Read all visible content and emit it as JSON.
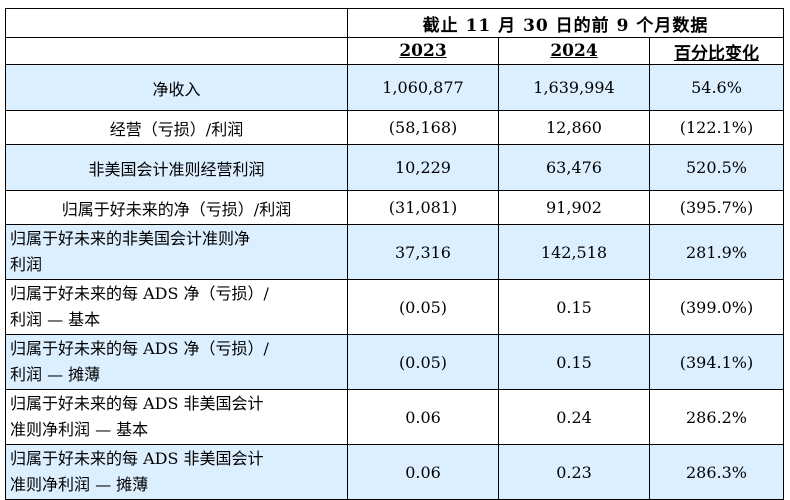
{
  "header": {
    "period": "截止 11 月 30 日的前 9 个月数据",
    "col_2023": "2023",
    "col_2024": "2024",
    "col_change": "百分比变化"
  },
  "colors": {
    "shaded_row": "#dcefff"
  },
  "rows": [
    {
      "label": "净收入",
      "v2023": "1,060,877",
      "v2024": "1,639,994",
      "change": "54.6%"
    },
    {
      "label": "经营（亏损）/利润",
      "v2023": "(58,168)",
      "v2024": "12,860",
      "change": "(122.1%)"
    },
    {
      "label": "非美国会计准则经营利润",
      "v2023": "10,229",
      "v2024": "63,476",
      "change": "520.5%"
    },
    {
      "label": "归属于好未来的净（亏损）/利润",
      "v2023": "(31,081)",
      "v2024": "91,902",
      "change": "(395.7%)"
    },
    {
      "label_line1": "归属于好未来的非美国会计准则净",
      "label_line2": "利润",
      "v2023": "37,316",
      "v2024": "142,518",
      "change": "281.9%"
    },
    {
      "label_line1": "归属于好未来的每 ADS 净（亏损）/",
      "label_line2": "利润 — 基本",
      "v2023": "(0.05)",
      "v2024": "0.15",
      "change": "(399.0%)"
    },
    {
      "label_line1": "归属于好未来的每 ADS 净（亏损）/",
      "label_line2": "利润 — 摊薄",
      "v2023": "(0.05)",
      "v2024": "0.15",
      "change": "(394.1%)"
    },
    {
      "label_line1": "归属于好未来的每 ADS 非美国会计",
      "label_line2": "准则净利润 — 基本",
      "v2023": "0.06",
      "v2024": "0.24",
      "change": "286.2%"
    },
    {
      "label_line1": "归属于好未来的每 ADS 非美国会计",
      "label_line2": "准则净利润 — 摊薄",
      "v2023": "0.06",
      "v2024": "0.23",
      "change": "286.3%"
    }
  ]
}
